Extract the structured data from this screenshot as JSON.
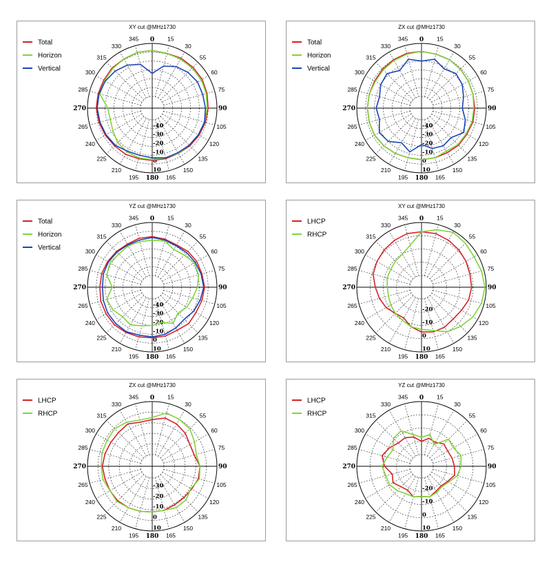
{
  "chart_data": [
    {
      "type": "polar-line",
      "title": "XY cut @MHz1730",
      "angle_labels": [
        "0",
        "15",
        "30",
        "55",
        "60",
        "75",
        "90",
        "105",
        "120",
        "135",
        "150",
        "165",
        "180",
        "195",
        "210",
        "225",
        "240",
        "265",
        "270",
        "285",
        "300",
        "315",
        "330",
        "345"
      ],
      "radial_labels": [
        "-40",
        "-30",
        "-20",
        "-10",
        "0",
        "10"
      ],
      "rlim": [
        -50,
        10
      ],
      "legend_position": "top-left",
      "series": [
        {
          "name": "Total",
          "color": "#d42027",
          "r": [
            2,
            1,
            2,
            2,
            2,
            1,
            0,
            -1,
            -2,
            -3,
            -4,
            -4,
            -4,
            -4,
            -3,
            -3,
            -2,
            -1,
            0,
            0,
            0,
            1,
            1,
            2
          ]
        },
        {
          "name": "Horizon",
          "color": "#7fd43a",
          "r": [
            2,
            1,
            1,
            1,
            1,
            0,
            -1,
            -2,
            -3,
            -4,
            -4,
            -5,
            -5,
            -5,
            -6,
            -8,
            -12,
            -14,
            -13,
            -2,
            -1,
            0,
            1,
            2
          ]
        },
        {
          "name": "Vertical",
          "color": "#1a44b8",
          "r": [
            -24,
            -14,
            -9,
            -6,
            -4,
            -4,
            -3,
            -2,
            -3,
            -4,
            -5,
            -5,
            -7,
            -8,
            -7,
            -4,
            -3,
            -2,
            -1,
            -1,
            -2,
            -4,
            -7,
            -12
          ]
        }
      ]
    },
    {
      "type": "polar-line",
      "title": "ZX cut @MHz1730",
      "angle_labels": [
        "0",
        "15",
        "30",
        "55",
        "60",
        "75",
        "90",
        "105",
        "120",
        "135",
        "150",
        "165",
        "180",
        "195",
        "210",
        "225",
        "240",
        "265",
        "270",
        "285",
        "300",
        "315",
        "330",
        "345"
      ],
      "radial_labels": [
        "-40",
        "-30",
        "-20",
        "-10",
        "0",
        "10"
      ],
      "rlim": [
        -50,
        10
      ],
      "legend_position": "top-left",
      "series": [
        {
          "name": "Total",
          "color": "#d42027",
          "r": [
            1,
            0,
            0,
            -1,
            -2,
            -3,
            -3,
            -3,
            -4,
            -4,
            -5,
            -5,
            -5,
            -5,
            -4,
            -3,
            -2,
            -2,
            -2,
            -2,
            -2,
            -1,
            0,
            1
          ]
        },
        {
          "name": "Horizon",
          "color": "#7fd43a",
          "r": [
            1,
            0,
            0,
            -1,
            -2,
            -3,
            -4,
            -4,
            -5,
            -5,
            -7,
            -5,
            -5,
            -5,
            -4,
            -3,
            -2,
            -2,
            -2,
            -2,
            -3,
            -2,
            -1,
            0
          ]
        },
        {
          "name": "Vertical",
          "color": "#1a44b8",
          "r": [
            -10,
            -6,
            -12,
            -8,
            -10,
            -14,
            -17,
            -12,
            -8,
            -16,
            -14,
            -16,
            -22,
            -12,
            -18,
            -10,
            -8,
            -14,
            -12,
            -14,
            -10,
            -8,
            -14,
            -6
          ]
        }
      ]
    },
    {
      "type": "polar-line",
      "title": "YZ cut @MHz1730",
      "angle_labels": [
        "0",
        "15",
        "30",
        "55",
        "60",
        "75",
        "90",
        "105",
        "120",
        "135",
        "150",
        "165",
        "180",
        "195",
        "210",
        "225",
        "240",
        "265",
        "270",
        "285",
        "300",
        "315",
        "330",
        "345"
      ],
      "radial_labels": [
        "-40",
        "-30",
        "-20",
        "-10",
        "0",
        "10"
      ],
      "rlim": [
        -50,
        10
      ],
      "legend_position": "top-left",
      "series": [
        {
          "name": "Total",
          "color": "#d42027",
          "r": [
            -6,
            -7,
            -8,
            -6,
            -5,
            -5,
            -4,
            -5,
            -6,
            -5,
            -7,
            -6,
            -6,
            -5,
            -4,
            -3,
            -3,
            -3,
            -4,
            -4,
            -5,
            -6,
            -7,
            -6
          ]
        },
        {
          "name": "Horizon",
          "color": "#7fd43a",
          "r": [
            -10,
            -9,
            -14,
            -12,
            -8,
            -9,
            -12,
            -16,
            -18,
            -22,
            -16,
            -22,
            -20,
            -18,
            -14,
            -16,
            -12,
            -10,
            -18,
            -10,
            -8,
            -10,
            -9,
            -10
          ]
        },
        {
          "name": "Vertical",
          "color": "#1a44b8",
          "r": [
            -7,
            -8,
            -9,
            -8,
            -7,
            -6,
            -5,
            -7,
            -9,
            -12,
            -10,
            -8,
            -7,
            -7,
            -5,
            -5,
            -5,
            -6,
            -7,
            -6,
            -6,
            -7,
            -8,
            -8
          ]
        }
      ]
    },
    {
      "type": "polar-line",
      "title": "XY cut @MHz1730",
      "angle_labels": [
        "0",
        "15",
        "30",
        "55",
        "60",
        "75",
        "90",
        "105",
        "120",
        "135",
        "150",
        "165",
        "180",
        "195",
        "210",
        "225",
        "240",
        "265",
        "270",
        "285",
        "300",
        "315",
        "330",
        "345"
      ],
      "radial_labels": [
        "-20",
        "-10",
        "0",
        "10"
      ],
      "rlim": [
        -30,
        10
      ],
      "legend_position": "top-left",
      "series": [
        {
          "name": "LHCP",
          "color": "#d42027",
          "r": [
            3,
            3,
            2,
            1,
            0,
            -1,
            -1,
            -2,
            -4,
            -5,
            -4,
            -4,
            -5,
            -8,
            -12,
            -11,
            -8,
            -6,
            -4,
            -1,
            0,
            1,
            2,
            3
          ]
        },
        {
          "name": "RHCP",
          "color": "#7fd43a",
          "r": [
            3,
            6,
            9,
            8,
            7,
            8,
            9,
            8,
            6,
            3,
            0,
            -5,
            -7,
            -8,
            -10,
            -11,
            -12,
            -13,
            -13,
            -12,
            -12,
            -11,
            -10,
            -6
          ]
        }
      ]
    },
    {
      "type": "polar-line",
      "title": "ZX cut @MHz1730",
      "angle_labels": [
        "0",
        "15",
        "30",
        "55",
        "60",
        "75",
        "90",
        "105",
        "120",
        "135",
        "150",
        "165",
        "180",
        "195",
        "210",
        "225",
        "240",
        "265",
        "270",
        "285",
        "300",
        "315",
        "330",
        "345"
      ],
      "radial_labels": [
        "-30",
        "-20",
        "-10",
        "0",
        "10"
      ],
      "rlim": [
        -40,
        10
      ],
      "legend_position": "top-left",
      "series": [
        {
          "name": "LHCP",
          "color": "#d42027",
          "r": [
            -7,
            -4,
            -5,
            -7,
            -10,
            -10,
            -6,
            -6,
            -8,
            -9,
            -9,
            -8,
            -8,
            -7,
            -6,
            -5,
            -5,
            -5,
            -4,
            -5,
            -6,
            -6,
            -5,
            -8
          ]
        },
        {
          "name": "RHCP",
          "color": "#7fd43a",
          "r": [
            -5,
            1,
            0,
            -1,
            -5,
            -8,
            -6,
            -5,
            -9,
            -6,
            -6,
            -8,
            -8,
            -7,
            -6,
            -4,
            -5,
            -3,
            -3,
            -2,
            -2,
            -1,
            -3,
            -6
          ]
        }
      ]
    },
    {
      "type": "polar-line",
      "title": "YZ cut @MHz1730",
      "angle_labels": [
        "0",
        "15",
        "30",
        "55",
        "60",
        "75",
        "90",
        "105",
        "120",
        "135",
        "150",
        "165",
        "180",
        "195",
        "210",
        "225",
        "240",
        "265",
        "270",
        "285",
        "300",
        "315",
        "330",
        "345"
      ],
      "radial_labels": [
        "-20",
        "-10",
        "0",
        "10"
      ],
      "rlim": [
        -30,
        10
      ],
      "legend_position": "top-left",
      "series": [
        {
          "name": "LHCP",
          "color": "#d42027",
          "r": [
            -20,
            -17,
            -18,
            -15,
            -16,
            -15,
            -14,
            -13,
            -16,
            -18,
            -17,
            -15,
            -16,
            -15,
            -18,
            -17,
            -14,
            -16,
            -11,
            -8,
            -11,
            -14,
            -14,
            -16
          ]
        },
        {
          "name": "RHCP",
          "color": "#7fd43a",
          "r": [
            -17,
            -14,
            -20,
            -10,
            -11,
            -8,
            -9,
            -11,
            -15,
            -17,
            -16,
            -15,
            -16,
            -15,
            -15,
            -13,
            -11,
            -11,
            -9,
            -12,
            -14,
            -9,
            -8,
            -14
          ]
        }
      ]
    }
  ]
}
